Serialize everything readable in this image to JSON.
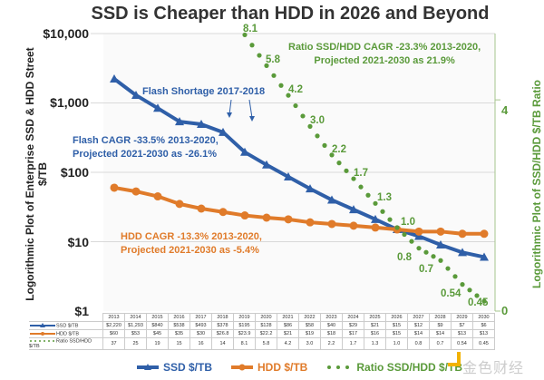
{
  "chart_data": {
    "type": "line",
    "title": "SSD is Cheaper than HDD in 2026 and Beyond",
    "ylabel": "Logorithmic Plot of Enterprise SSD & HDD Street $/TB",
    "y2label": "Logorithmic Plot of SSD/HDD $/TB Ratio",
    "yscale": "log",
    "ylim": [
      1,
      10000
    ],
    "y_ticks": [
      "$10,000",
      "$1,000",
      "$100",
      "$10",
      "$1"
    ],
    "y2_ticks": [
      "4",
      "0"
    ],
    "x": [
      "2013",
      "2014",
      "2015",
      "2016",
      "2017",
      "2018",
      "2019",
      "2020",
      "2021",
      "2022",
      "2023",
      "2024",
      "2025",
      "2026",
      "2027",
      "2028",
      "2029",
      "2030"
    ],
    "series": [
      {
        "name": "SSD $/TB",
        "color": "#2f5fa8",
        "axis": "left",
        "values": [
          2220,
          1293,
          840,
          538,
          493,
          378,
          195,
          128,
          86,
          58,
          40,
          29,
          21,
          15,
          12,
          9,
          7,
          6
        ],
        "display": [
          "$2,220",
          "$1,293",
          "$840",
          "$538",
          "$493",
          "$378",
          "$195",
          "$128",
          "$86",
          "$58",
          "$40",
          "$29",
          "$21",
          "$15",
          "$12",
          "$9",
          "$7",
          "$6"
        ]
      },
      {
        "name": "HDD $/TB",
        "color": "#e07b2a",
        "axis": "left",
        "values": [
          60,
          53,
          45,
          35,
          30,
          26.8,
          23.9,
          22.2,
          21,
          19,
          18,
          17,
          16,
          15,
          14,
          14,
          13,
          13
        ],
        "display": [
          "$60",
          "$53",
          "$45",
          "$35",
          "$30",
          "$26.8",
          "$23.9",
          "$22.2",
          "$21",
          "$19",
          "$18",
          "$17",
          "$16",
          "$15",
          "$14",
          "$14",
          "$13",
          "$13"
        ]
      },
      {
        "name": "Ratio SSD/HDD $/TB",
        "color": "#5a9a3a",
        "axis": "right",
        "values": [
          37,
          25,
          19,
          15,
          16,
          14,
          8.1,
          5.8,
          4.2,
          3.0,
          2.2,
          1.7,
          1.3,
          1.0,
          0.8,
          0.7,
          0.54,
          0.45
        ],
        "display": [
          "37",
          "25",
          "19",
          "15",
          "16",
          "14",
          "8.1",
          "5.8",
          "4.2",
          "3.0",
          "2.2",
          "1.7",
          "1.3",
          "1.0",
          "0.8",
          "0.7",
          "0.54",
          "0.45"
        ]
      }
    ],
    "ratio_labels": [
      "8.1",
      "5.8",
      "4.2",
      "3.0",
      "2.2",
      "1.7",
      "1.3",
      "1.0",
      "0.8",
      "0.7",
      "0.54",
      "0.45"
    ],
    "annotations": {
      "flash_shortage": "Flash Shortage 2017-2018",
      "flash_cagr": [
        "Flash CAGR -33.5% 2013-2020,",
        "Projected 2021-2030 as -26.1%"
      ],
      "hdd_cagr": [
        "HDD CAGR -13.3% 2013-2020,",
        "Projected 2021-2030 as -5.4%"
      ],
      "ratio_cagr": [
        "Ratio SSD/HDD CAGR -23.3% 2013-2020,",
        "Projected 2021-2030 as 21.9%"
      ]
    },
    "legend": [
      "SSD $/TB",
      "HDD $/TB",
      "Ratio SSD/HDD $/TB"
    ],
    "legend_position": "bottom",
    "grid": true
  },
  "watermark": "金色财经"
}
